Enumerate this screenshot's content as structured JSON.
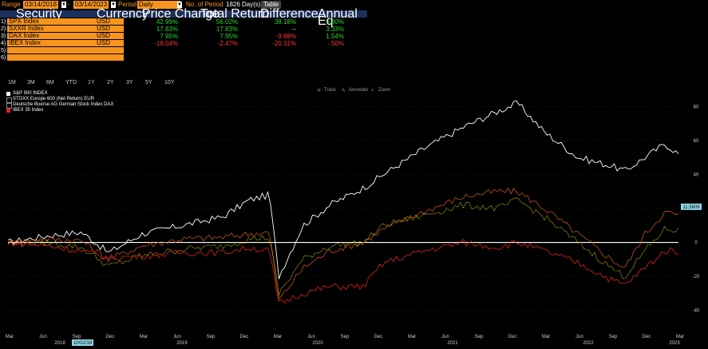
{
  "toolbar": {
    "range_label": "Range",
    "range_start": "03/14/2018",
    "range_end": "03/14/2023",
    "period_label": "Period",
    "period_value": "Daily",
    "num_period_label": "No. of Period",
    "num_period_value": "1826 Day(s)",
    "table_button": "Table"
  },
  "table": {
    "headers": [
      "Security",
      "Currency",
      "Price Change",
      "Total Return",
      "Difference",
      "Annual Eq"
    ],
    "rows": [
      {
        "num": "1)",
        "security": "SPX Index",
        "currency": "USD",
        "price_change": "42.99%",
        "total_return": "56.02%",
        "difference": "38.18%",
        "annual_eq": "9.30%"
      },
      {
        "num": "2)",
        "security": "SXXR Index",
        "currency": "USD",
        "price_change": "17.83%",
        "total_return": "17.83%",
        "difference": "--",
        "annual_eq": "3.33%"
      },
      {
        "num": "3)",
        "security": "DAX Index",
        "currency": "USD",
        "price_change": "7.95%",
        "total_return": "7.95%",
        "difference": "-9.88%",
        "annual_eq": "1.54%"
      },
      {
        "num": "4)",
        "security": "IBEX Index",
        "currency": "USD",
        "price_change": "-18.04%",
        "total_return": "-2.47%",
        "difference": "-20.31%",
        "annual_eq": "-.50%"
      },
      {
        "num": "5)",
        "security": "",
        "currency": "",
        "price_change": "",
        "total_return": "",
        "difference": "",
        "annual_eq": ""
      },
      {
        "num": "6)",
        "security": "",
        "currency": "",
        "price_change": "",
        "total_return": "",
        "difference": "",
        "annual_eq": ""
      }
    ]
  },
  "range_buttons": [
    "1M",
    "3M",
    "6M",
    "YTD",
    "1Y",
    "2Y",
    "3Y",
    "5Y",
    "10Y"
  ],
  "chart_tools": [
    "Track",
    "Annotate",
    "Zoom"
  ],
  "legend": [
    {
      "name": "S&P 500 INDEX",
      "color": "#ffffff"
    },
    {
      "name": "STOXX Europe 600 (Net Return) EUR",
      "color": "#000000"
    },
    {
      "name": "Deutsche Boerse AG German Stock Index DAX",
      "color": "#000000"
    },
    {
      "name": "IBEX 35 Index",
      "color": "#e0201a"
    }
  ],
  "chart_data": {
    "type": "line",
    "ylim": [
      -50,
      90
    ],
    "yticks": [
      "80",
      "60",
      "40",
      "20",
      "0",
      "-20",
      "-40"
    ],
    "last_value_label": "11.5609",
    "x_month_labels": [
      "Mar",
      "Jun",
      "Sep",
      "Dec",
      "Mar",
      "Jun",
      "Sep",
      "Dec",
      "Mar",
      "Jun",
      "Sep",
      "Dec",
      "Mar",
      "Jun",
      "Sep",
      "Dec",
      "Mar",
      "Jun",
      "Sep",
      "Dec",
      "Mar"
    ],
    "x_year_labels": [
      "2018",
      "2019",
      "2020",
      "2021",
      "2022",
      "2023"
    ],
    "cursor_date": "10/02/18",
    "x": [
      2018.2,
      2018.5,
      2018.75,
      2018.95,
      2019.2,
      2019.5,
      2019.8,
      2020.0,
      2020.15,
      2020.22,
      2020.4,
      2020.6,
      2020.85,
      2021.0,
      2021.3,
      2021.6,
      2021.85,
      2022.0,
      2022.2,
      2022.45,
      2022.7,
      2022.8,
      2022.95,
      2023.1,
      2023.2
    ],
    "series": [
      {
        "name": "S&P 500 INDEX",
        "color": "#ffffff",
        "values": [
          0,
          4,
          6,
          -6,
          5,
          10,
          15,
          25,
          28,
          -20,
          10,
          22,
          32,
          40,
          55,
          68,
          77,
          82,
          65,
          50,
          45,
          42,
          50,
          58,
          52
        ]
      },
      {
        "name": "STOXX Europe 600 (Net Return) EUR",
        "color": "#c0501e",
        "values": [
          0,
          2,
          1,
          -10,
          -2,
          2,
          3,
          5,
          6,
          -34,
          -15,
          -5,
          0,
          8,
          18,
          27,
          30,
          30,
          20,
          5,
          -10,
          -15,
          5,
          18,
          16
        ]
      },
      {
        "name": "Deutsche Boerse AG German Stock Index DAX",
        "color": "#c8c800",
        "values": [
          0,
          0,
          -3,
          -14,
          -8,
          -4,
          -2,
          2,
          3,
          -30,
          -10,
          -2,
          0,
          10,
          16,
          22,
          20,
          25,
          15,
          0,
          -15,
          -20,
          -5,
          8,
          7
        ]
      },
      {
        "name": "IBEX 35 Index",
        "color": "#e0201a",
        "values": [
          0,
          -2,
          -5,
          -9,
          -8,
          -6,
          -6,
          -3,
          -5,
          -36,
          -30,
          -26,
          -26,
          -12,
          -5,
          0,
          -3,
          0,
          -5,
          -12,
          -22,
          -25,
          -15,
          -5,
          -5
        ]
      }
    ]
  }
}
